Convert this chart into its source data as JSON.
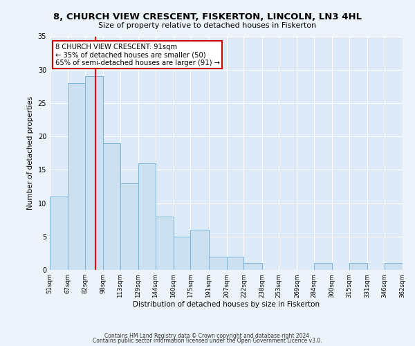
{
  "title": "8, CHURCH VIEW CRESCENT, FISKERTON, LINCOLN, LN3 4HL",
  "subtitle": "Size of property relative to detached houses in Fiskerton",
  "xlabel": "Distribution of detached houses by size in Fiskerton",
  "ylabel": "Number of detached properties",
  "bar_color": "#cce0f0",
  "bar_edge_color": "#7ab4d8",
  "bg_color": "#ddeaf7",
  "fig_bg_color": "#edf3fb",
  "grid_color": "#ffffff",
  "red_line_x": 91,
  "annotation_line1": "8 CHURCH VIEW CRESCENT: 91sqm",
  "annotation_line2": "← 35% of detached houses are smaller (50)",
  "annotation_line3": "65% of semi-detached houses are larger (91) →",
  "annotation_box_color": "#ffffff",
  "annotation_box_edge": "#cc0000",
  "bins": [
    51,
    67,
    82,
    98,
    113,
    129,
    144,
    160,
    175,
    191,
    207,
    222,
    238,
    253,
    269,
    284,
    300,
    315,
    331,
    346,
    362
  ],
  "counts": [
    11,
    28,
    29,
    19,
    13,
    16,
    8,
    5,
    6,
    2,
    2,
    1,
    0,
    0,
    0,
    1,
    0,
    1,
    0,
    1
  ],
  "ylim": [
    0,
    35
  ],
  "yticks": [
    0,
    5,
    10,
    15,
    20,
    25,
    30,
    35
  ],
  "footer1": "Contains HM Land Registry data © Crown copyright and database right 2024.",
  "footer2": "Contains public sector information licensed under the Open Government Licence v3.0."
}
